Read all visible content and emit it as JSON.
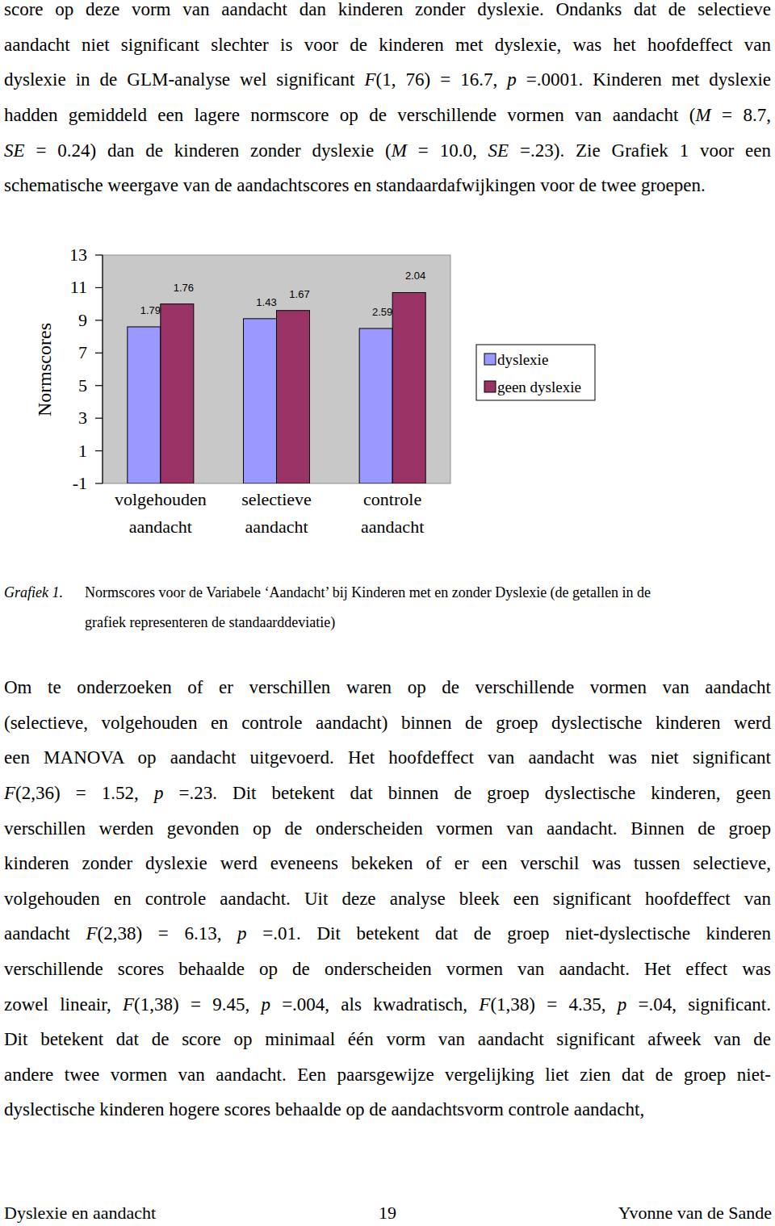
{
  "paragraphs": [
    {
      "lines": [
        [
          "score op deze vorm van aandacht dan kinderen zonder dyslexie. Ondanks dat de selectieve"
        ],
        [
          "aandacht niet significant slechter is voor de kinderen met dyslexie, was het hoofdeffect van"
        ],
        [
          "dyslexie in de GLM-analyse wel significant ",
          {
            "text": "F",
            "italic": true
          },
          "(1, 76) = 16.7, ",
          {
            "text": "p",
            "italic": true
          },
          " =.0001. Kinderen met dyslexie"
        ],
        [
          "hadden gemiddeld een lagere normscore op de verschillende vormen van aandacht (",
          {
            "text": "M",
            "italic": true
          },
          " = 8.7,"
        ],
        [
          {
            "text": "SE",
            "italic": true
          },
          " = 0.24) dan de kinderen zonder dyslexie (",
          {
            "text": "M",
            "italic": true
          },
          " = 10.0, ",
          {
            "text": "SE",
            "italic": true
          },
          " =.23). Zie Grafiek 1 voor een"
        ],
        [
          "schematische weergave van de aandachtscores en standaardafwijkingen voor de twee groepen."
        ]
      ]
    },
    {
      "lines": [
        [
          "Om te onderzoeken of er verschillen waren op de verschillende vormen van aandacht"
        ],
        [
          "(selectieve, volgehouden en controle aandacht) binnen de groep dyslectische kinderen werd"
        ],
        [
          "een MANOVA op aandacht uitgevoerd. Het hoofdeffect van aandacht was niet significant"
        ],
        [
          {
            "text": "F",
            "italic": true
          },
          "(2,36) = 1.52, ",
          {
            "text": "p",
            "italic": true
          },
          " =.23. Dit betekent dat binnen de groep dyslectische kinderen, geen"
        ],
        [
          "verschillen werden gevonden op de onderscheiden vormen van aandacht. Binnen de groep"
        ],
        [
          "kinderen zonder dyslexie werd eveneens bekeken of er een verschil was tussen selectieve,"
        ],
        [
          "volgehouden en controle aandacht. Uit deze analyse bleek een significant hoofdeffect van"
        ],
        [
          "aandacht ",
          {
            "text": "F",
            "italic": true
          },
          "(2,38) = 6.13, ",
          {
            "text": "p",
            "italic": true
          },
          " =.01. Dit betekent dat de groep niet-dyslectische kinderen"
        ],
        [
          "verschillende scores behaalde op de onderscheiden vormen van aandacht. Het effect was"
        ],
        [
          "zowel lineair, ",
          {
            "text": "F",
            "italic": true
          },
          "(1,38) = 9.45, ",
          {
            "text": "p",
            "italic": true
          },
          " =.004, als kwadratisch, ",
          {
            "text": "F",
            "italic": true
          },
          "(1,38) = 4.35, ",
          {
            "text": "p",
            "italic": true
          },
          " =.04, significant."
        ],
        [
          "Dit betekent dat de score op minimaal één vorm van aandacht significant afweek van de"
        ],
        [
          "andere twee vormen van aandacht. Een paarsgewijze vergelijking liet zien dat de groep niet-"
        ],
        [
          "dyslectische kinderen hogere scores behaalde op de aandachtsvorm controle aandacht,"
        ]
      ]
    }
  ],
  "chart_data": {
    "type": "bar",
    "ylabel": "Normscores",
    "categories": [
      "volgehouden aandacht",
      "selectieve aandacht",
      "controle aandacht"
    ],
    "series": [
      {
        "name": "dyslexie",
        "color": "#9999ff",
        "values": [
          8.6,
          9.1,
          8.5
        ],
        "sd": [
          1.79,
          1.43,
          2.59
        ]
      },
      {
        "name": "geen dyslexie",
        "color": "#993366",
        "values": [
          10.0,
          9.6,
          10.7
        ],
        "sd": [
          1.76,
          1.67,
          2.04
        ]
      }
    ],
    "ylim": [
      -1,
      13
    ],
    "yticks": [
      -1,
      1,
      3,
      5,
      7,
      9,
      11,
      13
    ],
    "legend": "right"
  },
  "caption": {
    "label": "Grafiek 1.",
    "lines": [
      "Normscores voor de Variabele ‘Aandacht’ bij Kinderen met en zonder Dyslexie (de getallen in de",
      "grafiek representeren de standaarddeviatie)"
    ]
  },
  "footer": {
    "left": "Dyslexie en aandacht",
    "page": "19",
    "right": "Yvonne van de Sande"
  }
}
